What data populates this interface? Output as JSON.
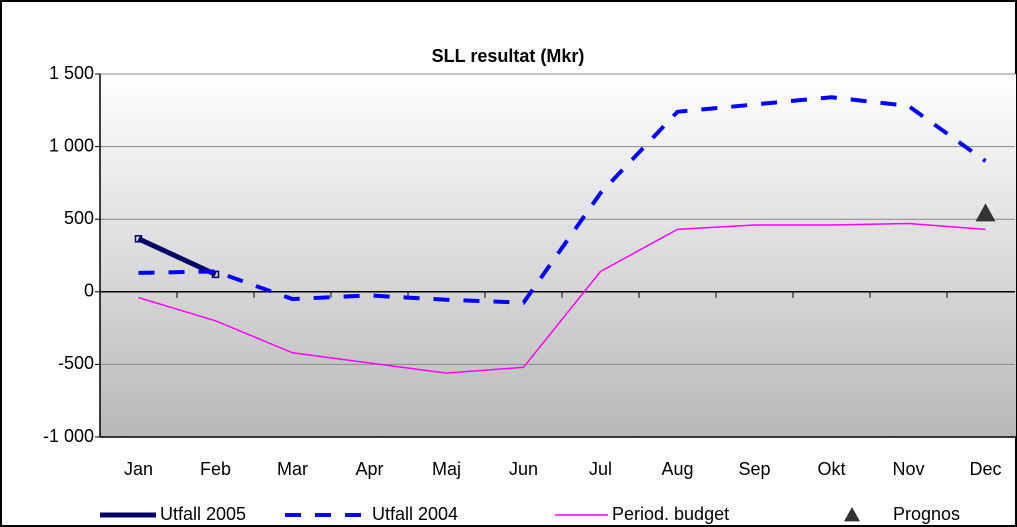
{
  "chart_data": {
    "type": "line",
    "title": "SLL resultat (Mkr)",
    "categories": [
      "Jan",
      "Feb",
      "Mar",
      "Apr",
      "Maj",
      "Jun",
      "Jul",
      "Aug",
      "Sep",
      "Okt",
      "Nov",
      "Dec"
    ],
    "series": [
      {
        "name": "Utfall 2005",
        "color": "#000066",
        "style": "solid",
        "values": [
          365,
          120,
          null,
          null,
          null,
          null,
          null,
          null,
          null,
          null,
          null,
          null
        ]
      },
      {
        "name": "Utfall 2004",
        "color": "#0000ff",
        "style": "dashed",
        "values": [
          130,
          140,
          -50,
          -25,
          -55,
          -75,
          680,
          1240,
          1290,
          1340,
          1280,
          900
        ]
      },
      {
        "name": "Period. budget",
        "color": "#ff00ff",
        "style": "thin",
        "values": [
          -40,
          -200,
          -420,
          -490,
          -560,
          -520,
          140,
          430,
          460,
          460,
          470,
          430
        ]
      },
      {
        "name": "Prognos",
        "color": "#333333",
        "style": "marker",
        "values": [
          null,
          null,
          null,
          null,
          null,
          null,
          null,
          null,
          null,
          null,
          null,
          540
        ]
      }
    ],
    "ylim": [
      -1000,
      1500
    ],
    "yticks": [
      {
        "value": -1000,
        "label": "-1 000"
      },
      -500,
      0,
      500,
      {
        "value": 1000,
        "label": "1 000"
      },
      {
        "value": 1500,
        "label": "1 500"
      }
    ],
    "grid": true
  }
}
